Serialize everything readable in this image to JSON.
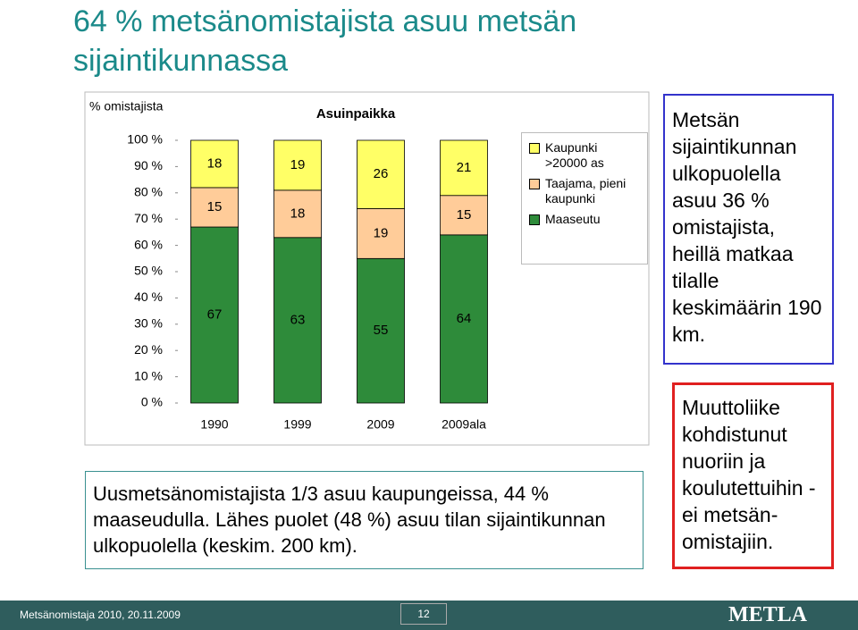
{
  "title": "64 % metsänomistajista asuu metsän sijaintikunnassa",
  "chart_data": {
    "type": "bar",
    "stacked": true,
    "title": "Asuinpaikka",
    "y_label": "% omistajista",
    "categories": [
      "1990",
      "1999",
      "2009",
      "2009ala"
    ],
    "series": [
      {
        "name": "Maaseutu",
        "color": "#2e8b3a",
        "values": [
          67,
          63,
          55,
          64
        ]
      },
      {
        "name": "Taajama, pieni kaupunki",
        "color": "#ffcc99",
        "values": [
          15,
          18,
          19,
          15
        ]
      },
      {
        "name": "Kaupunki >20000 as",
        "color": "#ffff66",
        "values": [
          18,
          19,
          26,
          21
        ]
      }
    ],
    "ylim": [
      0,
      100
    ],
    "yticks": [
      {
        "value": 0,
        "label": "0 %"
      },
      {
        "value": 10,
        "label": "10 %"
      },
      {
        "value": 20,
        "label": "20 %"
      },
      {
        "value": 30,
        "label": "30 %"
      },
      {
        "value": 40,
        "label": "40 %"
      },
      {
        "value": 50,
        "label": "50 %"
      },
      {
        "value": 60,
        "label": "60 %"
      },
      {
        "value": 70,
        "label": "70 %"
      },
      {
        "value": 80,
        "label": "80 %"
      },
      {
        "value": 90,
        "label": "90 %"
      },
      {
        "value": 100,
        "label": "100 %"
      }
    ],
    "legend": "right"
  },
  "note_box": "Uusmetsänomistajista 1/3 asuu kaupungeissa, 44 % maaseudulla. Lähes puolet (48 %) asuu tilan sijaintikunnan ulkopuolella (keskim. 200 km).",
  "side_box_1": "Metsän sijaintikunnan ulkopuolella asuu 36 % omistajista, heillä matkaa tilalle keskimäärin 190 km.",
  "side_box_2": "Muuttoliike kohdistunut nuoriin ja koulutettuihin - ei metsän-omistajiin.",
  "footer": {
    "source": "Metsänomistaja 2010, 20.11.2009",
    "page": "12",
    "logo": "METLA"
  }
}
